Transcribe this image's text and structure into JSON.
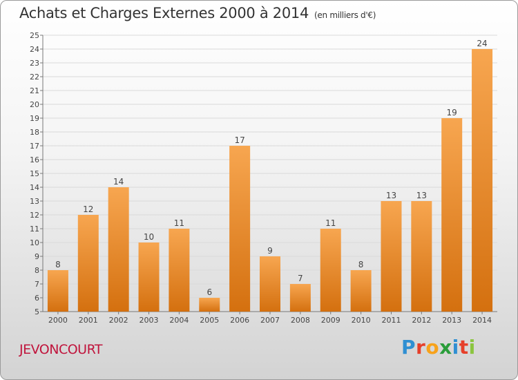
{
  "title": "Achats et Charges Externes 2000 à 2014",
  "unit": "(en milliers d'€)",
  "place": "JEVONCOURT",
  "logo": "Proxiti",
  "colors": {
    "bar_light": "#f7a650",
    "bar_dark": "#d4700f",
    "grid": "#d9d9d9"
  },
  "chart_data": {
    "type": "bar",
    "categories": [
      "2000",
      "2001",
      "2002",
      "2003",
      "2004",
      "2005",
      "2006",
      "2007",
      "2008",
      "2009",
      "2010",
      "2011",
      "2012",
      "2013",
      "2014"
    ],
    "values": [
      8,
      12,
      14,
      10,
      11,
      6,
      17,
      9,
      7,
      11,
      8,
      13,
      13,
      19,
      24
    ],
    "ylim": [
      5,
      25
    ],
    "yticks": [
      5,
      6,
      7,
      8,
      9,
      10,
      11,
      12,
      13,
      14,
      15,
      16,
      17,
      18,
      19,
      20,
      21,
      22,
      23,
      24,
      25
    ],
    "grid": true
  }
}
